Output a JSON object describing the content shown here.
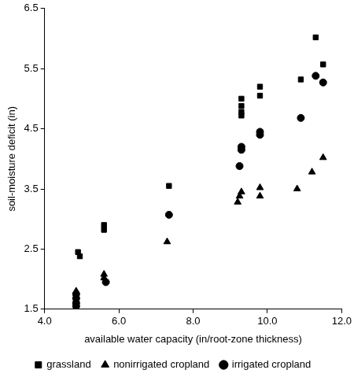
{
  "chart_data": {
    "type": "scatter",
    "x_label": "available water capacity (in/root-zone thickness)",
    "y_label": "soil-moisture deficit (in)",
    "xlim": [
      4.0,
      12.0
    ],
    "xticks": [
      {
        "value": 4,
        "label": "4.0"
      },
      {
        "value": 6,
        "label": "6.0"
      },
      {
        "value": 8,
        "label": "8.0"
      },
      {
        "value": 10,
        "label": "10.0"
      },
      {
        "value": 12,
        "label": "12.0"
      }
    ],
    "ylim": [
      1.5,
      6.5
    ],
    "yticks": [
      1.5,
      2.5,
      3.5,
      4.5,
      5.5,
      6.5
    ],
    "grid": false,
    "legend": "bottom",
    "series": [
      {
        "name": "grassland",
        "color": "#000000",
        "marker": "square",
        "x": [
          4.9,
          4.95,
          5.6,
          5.6,
          7.35,
          9.3,
          9.3,
          9.3,
          9.3,
          9.8,
          9.8,
          10.9,
          11.3,
          11.5
        ],
        "values": [
          2.45,
          2.38,
          2.9,
          2.82,
          3.55,
          5.0,
          4.88,
          4.78,
          4.72,
          5.2,
          5.05,
          5.32,
          6.02,
          5.57
        ]
      },
      {
        "name": "nonirrigated cropland",
        "color": "#000000",
        "marker": "triangle",
        "x": [
          4.85,
          4.85,
          4.85,
          5.6,
          5.6,
          7.3,
          9.2,
          9.25,
          9.3,
          9.8,
          9.8,
          10.8,
          11.2,
          11.5
        ],
        "values": [
          1.8,
          1.72,
          1.65,
          2.08,
          2.02,
          2.62,
          3.28,
          3.38,
          3.45,
          3.52,
          3.38,
          3.5,
          3.78,
          4.02
        ]
      },
      {
        "name": "irrigated cropland",
        "color": "#000000",
        "marker": "circle",
        "x": [
          4.85,
          4.85,
          4.85,
          4.85,
          5.65,
          7.35,
          9.25,
          9.3,
          9.3,
          9.8,
          9.8,
          10.9,
          11.3,
          11.5
        ],
        "values": [
          1.75,
          1.68,
          1.6,
          1.55,
          1.95,
          3.07,
          3.88,
          4.15,
          4.2,
          4.4,
          4.45,
          4.68,
          5.38,
          5.27
        ]
      }
    ]
  }
}
